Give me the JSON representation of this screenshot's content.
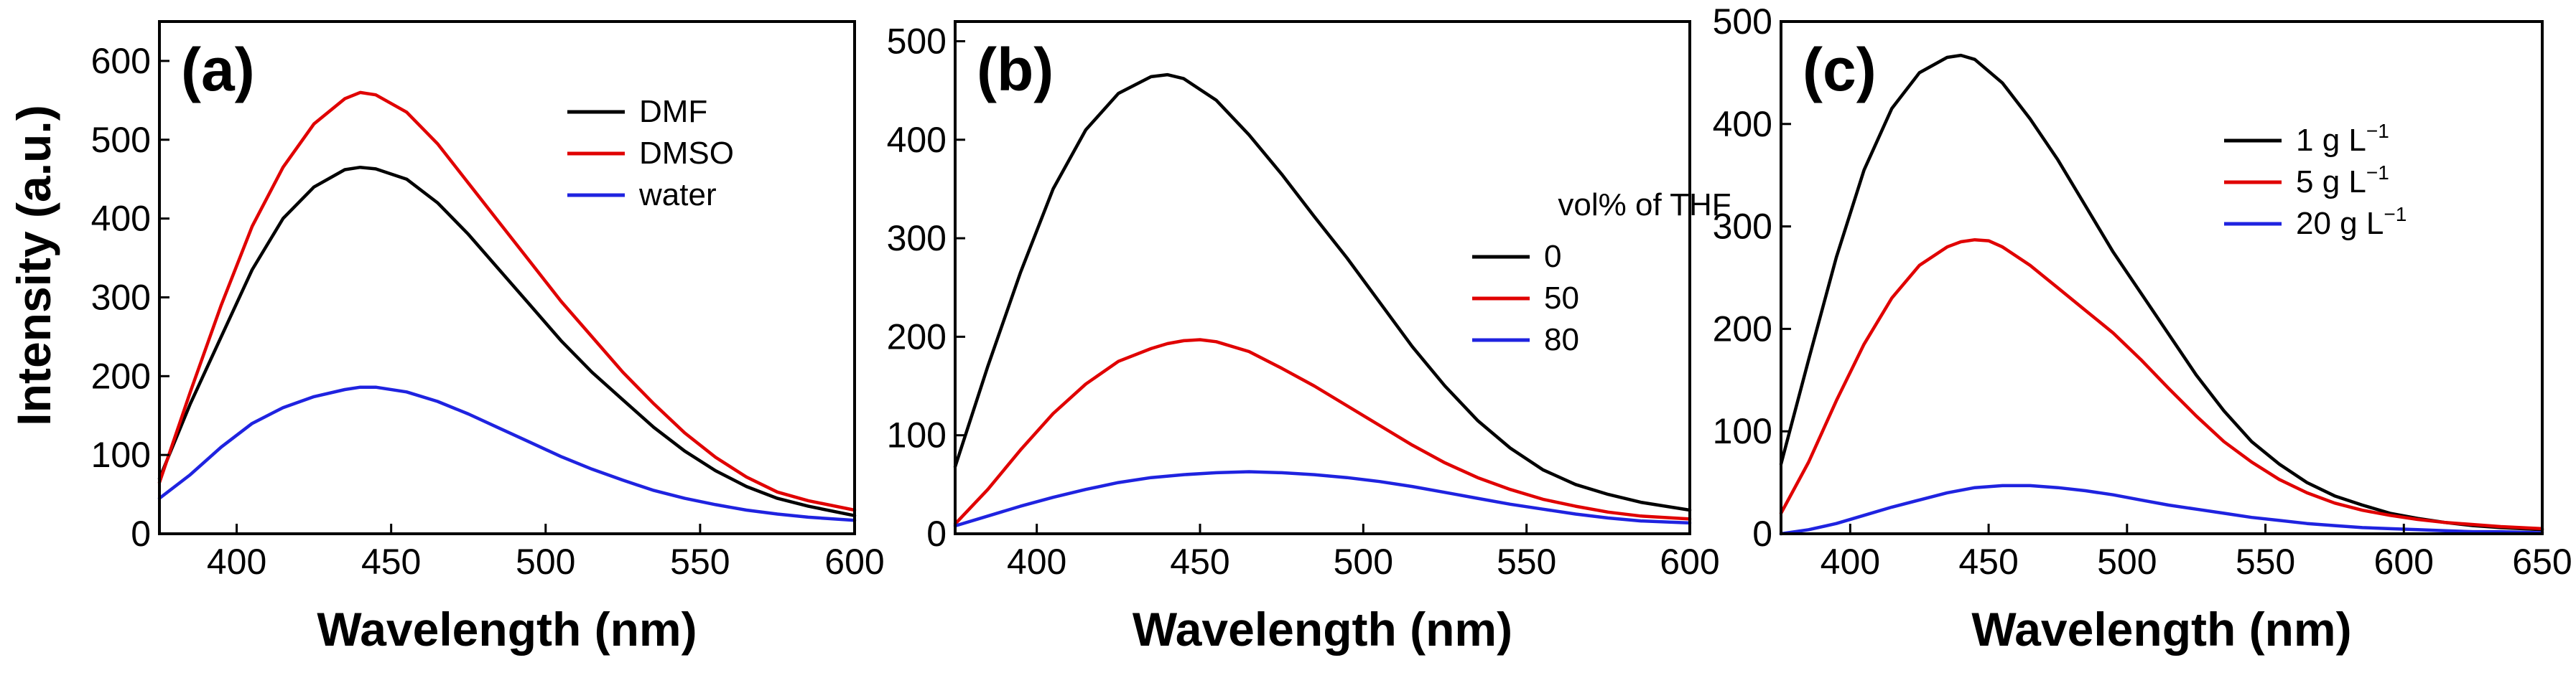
{
  "figure": {
    "y_axis_title": "Intensity (a.u.)"
  },
  "chart_data": [
    {
      "type": "line",
      "panel_label": "(a)",
      "xlabel": "Wavelength (nm)",
      "ylabel": "Intensity (a.u.)",
      "xlim": [
        375,
        600
      ],
      "ylim": [
        0,
        650
      ],
      "xticks": [
        400,
        450,
        500,
        550,
        600
      ],
      "yticks": [
        0,
        100,
        200,
        300,
        400,
        500,
        600
      ],
      "legend_title": "",
      "legend_position": "right",
      "series": [
        {
          "name": "DMF",
          "label": "DMF",
          "sup": "",
          "color": "#000000",
          "x": [
            375,
            385,
            395,
            405,
            415,
            425,
            435,
            440,
            445,
            455,
            465,
            475,
            485,
            495,
            505,
            515,
            525,
            535,
            545,
            555,
            565,
            575,
            585,
            600
          ],
          "y": [
            70,
            165,
            250,
            335,
            400,
            440,
            462,
            465,
            463,
            450,
            420,
            380,
            335,
            290,
            245,
            205,
            170,
            135,
            105,
            80,
            60,
            45,
            35,
            23
          ]
        },
        {
          "name": "DMSO",
          "label": "DMSO",
          "sup": "",
          "color": "#e00000",
          "x": [
            375,
            385,
            395,
            405,
            415,
            425,
            435,
            440,
            445,
            455,
            465,
            475,
            485,
            495,
            505,
            515,
            525,
            535,
            545,
            555,
            565,
            575,
            585,
            600
          ],
          "y": [
            65,
            180,
            290,
            390,
            465,
            520,
            552,
            560,
            557,
            535,
            495,
            445,
            395,
            345,
            295,
            250,
            205,
            165,
            128,
            97,
            72,
            53,
            42,
            30
          ]
        },
        {
          "name": "water",
          "label": "water",
          "sup": "",
          "color": "#1f23e0",
          "x": [
            375,
            385,
            395,
            405,
            415,
            425,
            435,
            440,
            445,
            455,
            465,
            475,
            485,
            495,
            505,
            515,
            525,
            535,
            545,
            555,
            565,
            575,
            585,
            600
          ],
          "y": [
            45,
            75,
            110,
            140,
            160,
            174,
            183,
            186,
            186,
            180,
            168,
            152,
            134,
            116,
            98,
            82,
            68,
            55,
            45,
            37,
            30,
            25,
            21,
            17
          ]
        }
      ]
    },
    {
      "type": "line",
      "panel_label": "(b)",
      "xlabel": "Wavelength (nm)",
      "ylabel": "",
      "xlim": [
        375,
        600
      ],
      "ylim": [
        0,
        520
      ],
      "xticks": [
        400,
        450,
        500,
        550,
        600
      ],
      "yticks": [
        0,
        100,
        200,
        300,
        400,
        500
      ],
      "legend_title": "vol% of THF",
      "legend_position": "right",
      "series": [
        {
          "name": "0",
          "label": "0",
          "sup": "",
          "color": "#000000",
          "x": [
            375,
            385,
            395,
            405,
            415,
            425,
            435,
            440,
            445,
            455,
            465,
            475,
            485,
            495,
            505,
            515,
            525,
            535,
            545,
            555,
            565,
            575,
            585,
            600
          ],
          "y": [
            68,
            170,
            265,
            350,
            410,
            447,
            464,
            466,
            462,
            440,
            405,
            365,
            322,
            280,
            235,
            190,
            150,
            115,
            87,
            65,
            50,
            40,
            32,
            24
          ]
        },
        {
          "name": "50",
          "label": "50",
          "sup": "",
          "color": "#e00000",
          "x": [
            375,
            385,
            395,
            405,
            415,
            425,
            435,
            440,
            445,
            450,
            455,
            465,
            475,
            485,
            495,
            505,
            515,
            525,
            535,
            545,
            555,
            565,
            575,
            585,
            600
          ],
          "y": [
            10,
            45,
            85,
            122,
            152,
            175,
            188,
            193,
            196,
            197,
            195,
            185,
            168,
            150,
            130,
            110,
            90,
            72,
            57,
            45,
            35,
            28,
            22,
            18,
            15
          ]
        },
        {
          "name": "80",
          "label": "80",
          "sup": "",
          "color": "#1f23e0",
          "x": [
            375,
            385,
            395,
            405,
            415,
            425,
            435,
            445,
            455,
            465,
            475,
            485,
            495,
            505,
            515,
            525,
            535,
            545,
            555,
            565,
            575,
            585,
            600
          ],
          "y": [
            8,
            18,
            28,
            37,
            45,
            52,
            57,
            60,
            62,
            63,
            62,
            60,
            57,
            53,
            48,
            42,
            36,
            30,
            25,
            20,
            16,
            13,
            11
          ]
        }
      ]
    },
    {
      "type": "line",
      "panel_label": "(c)",
      "xlabel": "Wavelength (nm)",
      "ylabel": "",
      "xlim": [
        375,
        650
      ],
      "ylim": [
        0,
        500
      ],
      "xticks": [
        400,
        450,
        500,
        550,
        600,
        650
      ],
      "yticks": [
        0,
        100,
        200,
        300,
        400,
        500
      ],
      "legend_title": "",
      "legend_position": "right",
      "series": [
        {
          "name": "1 g L-1",
          "label": "1 g L",
          "sup": "−1",
          "color": "#000000",
          "x": [
            375,
            385,
            395,
            405,
            415,
            425,
            435,
            440,
            445,
            455,
            465,
            475,
            485,
            495,
            505,
            515,
            525,
            535,
            545,
            555,
            565,
            575,
            585,
            595,
            605,
            615,
            625,
            635,
            650
          ],
          "y": [
            68,
            170,
            270,
            355,
            415,
            450,
            465,
            467,
            463,
            440,
            405,
            365,
            320,
            275,
            235,
            195,
            155,
            120,
            90,
            68,
            50,
            37,
            28,
            20,
            15,
            11,
            8,
            6,
            4
          ]
        },
        {
          "name": "5 g L-1",
          "label": "5 g L",
          "sup": "−1",
          "color": "#e00000",
          "x": [
            375,
            385,
            395,
            405,
            415,
            425,
            435,
            440,
            445,
            450,
            455,
            465,
            475,
            485,
            495,
            505,
            515,
            525,
            535,
            545,
            555,
            565,
            575,
            585,
            595,
            605,
            615,
            625,
            635,
            650
          ],
          "y": [
            20,
            70,
            130,
            185,
            230,
            262,
            280,
            285,
            287,
            286,
            280,
            262,
            240,
            218,
            196,
            170,
            142,
            115,
            90,
            70,
            53,
            40,
            30,
            23,
            18,
            14,
            11,
            9,
            7,
            5
          ]
        },
        {
          "name": "20 g L-1",
          "label": "20 g L",
          "sup": "−1",
          "color": "#1f23e0",
          "x": [
            375,
            385,
            395,
            405,
            415,
            425,
            435,
            445,
            455,
            465,
            475,
            485,
            495,
            505,
            515,
            525,
            535,
            545,
            555,
            565,
            575,
            585,
            595,
            605,
            615,
            625,
            635,
            650
          ],
          "y": [
            0,
            4,
            10,
            18,
            26,
            33,
            40,
            45,
            47,
            47,
            45,
            42,
            38,
            33,
            28,
            24,
            20,
            16,
            13,
            10,
            8,
            6,
            5,
            4,
            3,
            2,
            2,
            1
          ]
        }
      ]
    }
  ]
}
